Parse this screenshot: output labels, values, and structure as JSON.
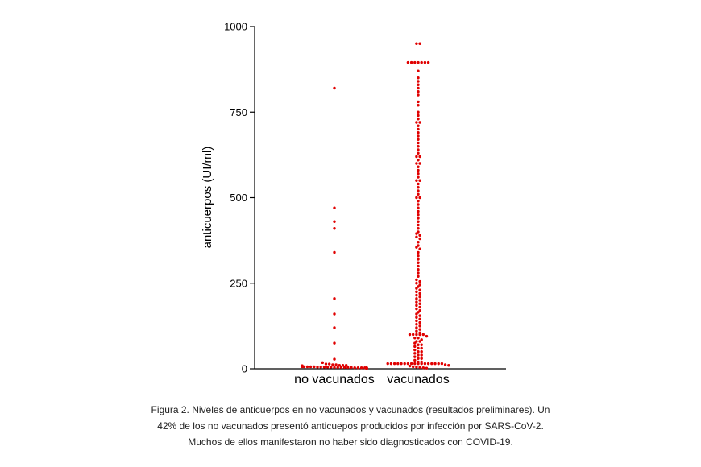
{
  "chart_data": {
    "type": "scatter",
    "ylabel": "anticuerpos (UI/ml)",
    "ylim": [
      0,
      1000
    ],
    "yticks": [
      "0",
      "250",
      "500",
      "750",
      "1000"
    ],
    "categories": [
      "no vacunados",
      "vacunados"
    ],
    "grid": false,
    "legend": "none",
    "marker_color": "#e00000",
    "series": [
      {
        "values": [
          820,
          470,
          430,
          410,
          340,
          205,
          160,
          120,
          75,
          28,
          18,
          14,
          14,
          12,
          12,
          10,
          10,
          10,
          9,
          9,
          8,
          8,
          8,
          7,
          7,
          7,
          7,
          6,
          6,
          6,
          6,
          6,
          5,
          5,
          5,
          5,
          5,
          4,
          4,
          4,
          4,
          4,
          4,
          3,
          3,
          3,
          3,
          3,
          3,
          2,
          2,
          2,
          2,
          2,
          1,
          1,
          1
        ]
      },
      {
        "values": [
          950,
          950,
          895,
          895,
          895,
          895,
          895,
          895,
          895,
          870,
          850,
          840,
          830,
          820,
          810,
          800,
          780,
          770,
          750,
          740,
          730,
          720,
          720,
          710,
          700,
          690,
          680,
          670,
          660,
          650,
          640,
          630,
          620,
          620,
          610,
          600,
          600,
          590,
          580,
          570,
          560,
          550,
          550,
          540,
          530,
          520,
          510,
          500,
          500,
          490,
          480,
          470,
          460,
          450,
          440,
          430,
          420,
          410,
          400,
          395,
          390,
          385,
          380,
          370,
          360,
          355,
          350,
          340,
          330,
          320,
          310,
          300,
          290,
          280,
          270,
          260,
          255,
          250,
          245,
          240,
          235,
          230,
          225,
          220,
          215,
          210,
          205,
          200,
          195,
          190,
          185,
          180,
          175,
          170,
          165,
          160,
          155,
          150,
          145,
          140,
          135,
          130,
          125,
          120,
          115,
          110,
          105,
          100,
          100,
          100,
          100,
          100,
          95,
          90,
          90,
          85,
          80,
          80,
          75,
          70,
          70,
          65,
          60,
          60,
          55,
          50,
          50,
          45,
          40,
          40,
          35,
          30,
          30,
          25,
          20,
          20,
          15,
          15,
          15,
          15,
          15,
          15,
          15,
          15,
          15,
          15,
          15,
          15,
          15,
          15,
          15,
          15,
          15,
          12,
          10,
          8,
          6,
          5,
          4,
          3,
          2
        ]
      }
    ]
  },
  "caption": {
    "line1": "Figura 2. Niveles de anticuerpos en no vacunados y vacunados (resultados preliminares). Un",
    "line2": "42% de los no vacunados presentó anticuepos producidos por infección por SARS-CoV-2.",
    "line3": "Muchos de ellos manifestaron no haber sido diagnosticados con COVID-19."
  }
}
